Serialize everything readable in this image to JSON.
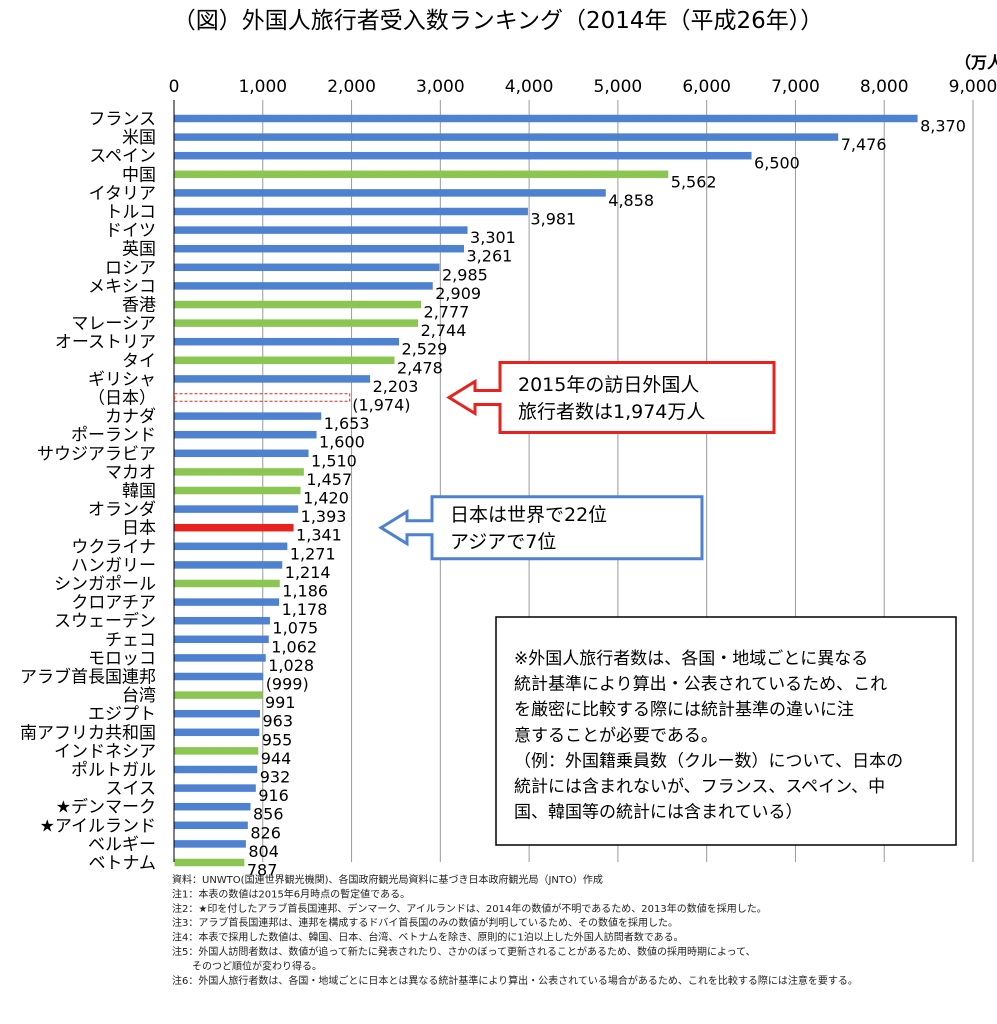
{
  "chart_data": {
    "type": "bar",
    "orientation": "horizontal",
    "title": "（図）外国人旅行者受入数ランキング（2014年（平成26年））",
    "unit_label": "（万人）",
    "xlim": [
      0,
      9000
    ],
    "x_ticks": [
      "0",
      "1,000",
      "2,000",
      "3,000",
      "4,000",
      "5,000",
      "6,000",
      "7,000",
      "8,000",
      "9,000"
    ],
    "x_tick_values": [
      0,
      1000,
      2000,
      3000,
      4000,
      5000,
      6000,
      7000,
      8000,
      9000
    ],
    "grid": true,
    "colors": {
      "europe_americas": "#4f81d1",
      "asia": "#8cc652",
      "japan": "#e8231e",
      "japan_2015": "#e8231e"
    },
    "bars": [
      {
        "label": "フランス",
        "value": 8370,
        "value_label": "8,370",
        "group": "europe_americas"
      },
      {
        "label": "米国",
        "value": 7476,
        "value_label": "7,476",
        "group": "europe_americas"
      },
      {
        "label": "スペイン",
        "value": 6500,
        "value_label": "6,500",
        "group": "europe_americas"
      },
      {
        "label": "中国",
        "value": 5562,
        "value_label": "5,562",
        "group": "asia"
      },
      {
        "label": "イタリア",
        "value": 4858,
        "value_label": "4,858",
        "group": "europe_americas"
      },
      {
        "label": "トルコ",
        "value": 3981,
        "value_label": "3,981",
        "group": "europe_americas"
      },
      {
        "label": "ドイツ",
        "value": 3301,
        "value_label": "3,301",
        "group": "europe_americas"
      },
      {
        "label": "英国",
        "value": 3261,
        "value_label": "3,261",
        "group": "europe_americas"
      },
      {
        "label": "ロシア",
        "value": 2985,
        "value_label": "2,985",
        "group": "europe_americas"
      },
      {
        "label": "メキシコ",
        "value": 2909,
        "value_label": "2,909",
        "group": "europe_americas"
      },
      {
        "label": "香港",
        "value": 2777,
        "value_label": "2,777",
        "group": "asia"
      },
      {
        "label": "マレーシア",
        "value": 2744,
        "value_label": "2,744",
        "group": "asia"
      },
      {
        "label": "オーストリア",
        "value": 2529,
        "value_label": "2,529",
        "group": "europe_americas"
      },
      {
        "label": "タイ",
        "value": 2478,
        "value_label": "2,478",
        "group": "asia"
      },
      {
        "label": "ギリシャ",
        "value": 2203,
        "value_label": "2,203",
        "group": "europe_americas"
      },
      {
        "label": "（日本）",
        "value": 1974,
        "value_label": "(1,974)",
        "group": "japan_2015"
      },
      {
        "label": "カナダ",
        "value": 1653,
        "value_label": "1,653",
        "group": "europe_americas"
      },
      {
        "label": "ポーランド",
        "value": 1600,
        "value_label": "1,600",
        "group": "europe_americas"
      },
      {
        "label": "サウジアラビア",
        "value": 1510,
        "value_label": "1,510",
        "group": "europe_americas"
      },
      {
        "label": "マカオ",
        "value": 1457,
        "value_label": "1,457",
        "group": "asia"
      },
      {
        "label": "韓国",
        "value": 1420,
        "value_label": "1,420",
        "group": "asia"
      },
      {
        "label": "オランダ",
        "value": 1393,
        "value_label": "1,393",
        "group": "europe_americas"
      },
      {
        "label": "日本",
        "value": 1341,
        "value_label": "1,341",
        "group": "japan"
      },
      {
        "label": "ウクライナ",
        "value": 1271,
        "value_label": "1,271",
        "group": "europe_americas"
      },
      {
        "label": "ハンガリー",
        "value": 1214,
        "value_label": "1,214",
        "group": "europe_americas"
      },
      {
        "label": "シンガポール",
        "value": 1186,
        "value_label": "1,186",
        "group": "asia"
      },
      {
        "label": "クロアチア",
        "value": 1178,
        "value_label": "1,178",
        "group": "europe_americas"
      },
      {
        "label": "スウェーデン",
        "value": 1075,
        "value_label": "1,075",
        "group": "europe_americas"
      },
      {
        "label": "チェコ",
        "value": 1062,
        "value_label": "1,062",
        "group": "europe_americas"
      },
      {
        "label": "モロッコ",
        "value": 1028,
        "value_label": "1,028",
        "group": "europe_americas"
      },
      {
        "label": "アラブ首長国連邦",
        "value": 999,
        "value_label": "(999)",
        "group": "europe_americas"
      },
      {
        "label": "台湾",
        "value": 991,
        "value_label": "991",
        "group": "asia"
      },
      {
        "label": "エジプト",
        "value": 963,
        "value_label": "963",
        "group": "europe_americas"
      },
      {
        "label": "南アフリカ共和国",
        "value": 955,
        "value_label": "955",
        "group": "europe_americas"
      },
      {
        "label": "インドネシア",
        "value": 944,
        "value_label": "944",
        "group": "asia"
      },
      {
        "label": "ポルトガル",
        "value": 932,
        "value_label": "932",
        "group": "europe_americas"
      },
      {
        "label": "スイス",
        "value": 916,
        "value_label": "916",
        "group": "europe_americas"
      },
      {
        "label": "★デンマーク",
        "value": 856,
        "value_label": "856",
        "group": "europe_americas"
      },
      {
        "label": "★アイルランド",
        "value": 826,
        "value_label": "826",
        "group": "europe_americas"
      },
      {
        "label": "ベルギー",
        "value": 804,
        "value_label": "804",
        "group": "europe_americas"
      },
      {
        "label": "ベトナム",
        "value": 787,
        "value_label": "787",
        "group": "asia"
      }
    ],
    "annotations": [
      {
        "target": "（日本）",
        "lines": [
          "2015年の訪日外国人",
          "旅行者数は1,974万人"
        ],
        "border": "#e8231e"
      },
      {
        "target": "日本",
        "lines": [
          "日本は世界で22位",
          "アジアで7位"
        ],
        "border": "#4f81d1"
      }
    ],
    "note_box": [
      "※外国人旅行者数は、各国・地域ごとに異なる",
      "統計基準により算出・公表されているため、これ",
      "を厳密に比較する際には統計基準の違いに注",
      "意することが必要である。",
      "（例：外国籍乗員数（クルー数）について、日本の",
      "統計には含まれないが、フランス、スペイン、中",
      "国、韓国等の統計には含まれている）"
    ],
    "footnotes": [
      "資料：UNWTO(国連世界観光機関)、各国政府観光局資料に基づき日本政府観光局（JNTO）作成",
      "注1：本表の数値は2015年6月時点の暫定値である。",
      "注2：★印を付したアラブ首長国連邦、デンマーク、アイルランドは、2014年の数値が不明であるため、2013年の数値を採用した。",
      "注3：アラブ首長国連邦は、連邦を構成するドバイ首長国のみの数値が判明しているため、その数値を採用した。",
      "注4：本表で採用した数値は、韓国、日本、台湾、ベトナムを除き、原則的に1泊以上した外国人訪問者数である。",
      "注5：外国人訪問者数は、数値が追って新たに発表されたり、さかのぼって更新されることがあるため、数値の採用時期によって、",
      "　　そのつど順位が変わり得る。",
      "注6：外国人旅行者数は、各国・地域ごとに日本とは異なる統計基準により算出・公表されている場合があるため、これを比較する際には注意を要する。"
    ]
  }
}
